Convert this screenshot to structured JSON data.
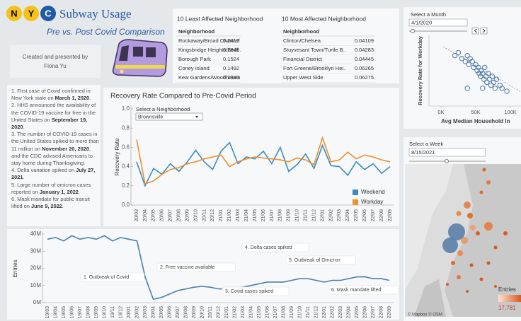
{
  "header": {
    "logo": [
      "N",
      "Y",
      "C"
    ],
    "title": "Subway Usage",
    "subtitle": "Pre vs. Post Covid Comparison",
    "credit": "Created and presented by",
    "author": "Fiona Yu"
  },
  "tables": [
    {
      "title": "10 Least Affected Neighborhood",
      "header": "Neighborhood",
      "rows": [
        [
          "Rockaway/Broad Channel",
          0.2417
        ],
        [
          "Kingsbridge Heights/Bedf..",
          0.1849
        ],
        [
          "Borough Park",
          0.1524
        ],
        [
          "Coney Island",
          0.1492
        ],
        [
          "Kew Gardens/Woodhaven",
          0.1363
        ]
      ]
    },
    {
      "title": "10 Most Affected Neighborhood",
      "header": "Neighborhood",
      "rows": [
        [
          "Clinton/Chelsea",
          0.04109
        ],
        [
          "Stuyvesant Town/Turtle B..",
          0.04283
        ],
        [
          "Financial District",
          0.04445
        ],
        [
          "Fort Greene/Brooklyn Hei..",
          0.06265
        ],
        [
          "Upper West Side",
          0.06275
        ]
      ]
    }
  ],
  "notes": [
    {
      "pre": "1. First case of Covid  confirmed in New York state on ",
      "bold": "March 1, 2020",
      "post": "."
    },
    {
      "pre": "2. HHS announced the availability of the COVID-19 vaccine for free in the United States on ",
      "bold": "September 19, 2020",
      "post": "."
    },
    {
      "pre": "3. The number of COVID-19 cases in the United States spiked to more than 11 million on ",
      "bold": "November 20, 2020",
      "post": ", and the CDC advised Americans to stay home during Thanksgiving."
    },
    {
      "pre": "4. Delta variation spiked on ",
      "bold": "July 27, 2021",
      "post": "."
    },
    {
      "pre": "5. Large number of omicron cases reported on ",
      "bold": "January 1, 2022",
      "post": "."
    },
    {
      "pre": "6. Mask mandate for public transit lifted on ",
      "bold": "June 9, 2022",
      "post": "."
    }
  ],
  "map": {
    "filter_label": "Select a Week",
    "filter_value": "8/15/2021",
    "legend_title": "Entries",
    "legend_max": "17,781",
    "credit": "© Mapbox © OSM"
  },
  "chart_data": [
    {
      "type": "line",
      "title": "Recovery Rate Compared to Pre-Covid Period",
      "filter_label": "Select a Neighborhood",
      "filter_value": "Brownsville",
      "y_label": "Recovery Rate",
      "legend": "bottom-right",
      "categories": [
        "20/03",
        "20/04",
        "20/05",
        "20/06",
        "20/07",
        "20/08",
        "20/09",
        "20/10",
        "20/11",
        "20/12",
        "21/01",
        "21/02",
        "21/03",
        "21/04",
        "21/05",
        "21/06",
        "21/07",
        "21/08",
        "21/09",
        "21/10",
        "21/11",
        "21/12",
        "22/01",
        "22/02",
        "22/03",
        "22/04",
        "22/05",
        "22/06",
        "22/07",
        "22/08",
        "22/09"
      ],
      "series": [
        {
          "name": "Weekend",
          "color": "#3a8cc4",
          "values": [
            0.45,
            0.2,
            0.38,
            0.32,
            0.43,
            0.35,
            0.45,
            0.57,
            0.45,
            0.37,
            0.56,
            0.65,
            0.43,
            0.5,
            0.48,
            0.56,
            0.43,
            0.6,
            0.35,
            0.42,
            0.53,
            0.38,
            0.62,
            0.41,
            0.4,
            0.31,
            0.45,
            0.37,
            0.43,
            0.33,
            0.4
          ]
        },
        {
          "name": "Workday",
          "color": "#f28e2b",
          "values": [
            0.68,
            0.22,
            0.25,
            0.32,
            0.37,
            0.39,
            0.43,
            0.45,
            0.48,
            0.5,
            0.52,
            0.4,
            0.45,
            0.48,
            0.5,
            0.49,
            0.48,
            0.47,
            0.45,
            0.49,
            0.47,
            0.42,
            0.7,
            0.45,
            0.47,
            0.55,
            0.48,
            0.52,
            0.5,
            0.47,
            0.45
          ]
        }
      ],
      "ylim": [
        0,
        1
      ],
      "yticks": [
        {
          "value": 0,
          "label": "0.0"
        },
        0.2,
        0.4,
        0.6,
        0.8,
        {
          "value": 1,
          "label": "1.0"
        }
      ]
    },
    {
      "type": "line",
      "y_label": "Entries",
      "color": "#4a7fb0",
      "categories": [
        "19/03",
        "19/04",
        "19/05",
        "19/06",
        "19/07",
        "19/08",
        "19/09",
        "19/10",
        "19/11",
        "19/12",
        "20/01",
        "20/02",
        "20/03",
        "20/04",
        "20/05",
        "20/06",
        "20/07",
        "20/08",
        "20/09",
        "20/10",
        "20/11",
        "20/12",
        "21/01",
        "21/02",
        "21/03",
        "21/04",
        "21/05",
        "21/06",
        "21/07",
        "21/08",
        "21/09",
        "21/10",
        "21/11",
        "21/12",
        "22/01",
        "22/02",
        "22/03",
        "22/04",
        "22/05",
        "22/06",
        "22/07",
        "22/08",
        "22/09"
      ],
      "values": [
        37000000,
        38000000,
        36000000,
        39000000,
        37000000,
        38000000,
        37000000,
        39000000,
        36000000,
        38000000,
        37000000,
        36000000,
        15000000,
        2000000,
        3000000,
        5000000,
        7000000,
        8000000,
        9000000,
        9500000,
        9000000,
        8000000,
        8000000,
        8500000,
        9000000,
        10000000,
        11000000,
        12000000,
        12000000,
        12000000,
        13000000,
        14000000,
        14000000,
        13000000,
        12000000,
        13000000,
        13000000,
        14000000,
        15000000,
        15000000,
        14000000,
        14000000,
        13000000
      ],
      "ylim": [
        0,
        40000000
      ],
      "yticks": [
        {
          "value": 0,
          "label": "0M"
        },
        {
          "value": 10000000,
          "label": "10M"
        },
        {
          "value": 20000000,
          "label": "20M"
        },
        {
          "value": 30000000,
          "label": "30M"
        },
        {
          "value": 40000000,
          "label": "40M"
        }
      ],
      "annotations": [
        "1. Outbreak of Covid",
        "2. Free vaccine available",
        "3. Covid cases spiked",
        "4. Delta cases spiked",
        "5. Outbreak of Omicron",
        "6. Mask mandate lifted"
      ]
    },
    {
      "type": "scatter",
      "filter_label": "Select a Month",
      "filter_value": "4/1/2020",
      "color": "#4e79a7",
      "x_label": "Avg Median Household In",
      "y_label": "Recovery Rate for Workday",
      "x": [
        20000,
        25000,
        30000,
        35000,
        38000,
        40000,
        42000,
        45000,
        47000,
        50000,
        52000,
        54000,
        55000,
        57000,
        58000,
        60000,
        62000,
        63000,
        65000,
        66000,
        68000,
        70000,
        72000,
        74000,
        76000,
        78000,
        80000,
        85000,
        88000,
        95000,
        60000,
        38000
      ],
      "values": [
        0.27,
        0.28,
        0.26,
        0.25,
        0.27,
        0.24,
        0.26,
        0.25,
        0.23,
        0.24,
        0.22,
        0.23,
        0.21,
        0.2,
        0.22,
        0.21,
        0.19,
        0.23,
        0.2,
        0.18,
        0.21,
        0.19,
        0.17,
        0.2,
        0.18,
        0.16,
        0.19,
        0.17,
        0.16,
        0.15,
        0.16,
        0.16
      ],
      "xlim": [
        -15000,
        115000
      ],
      "ylim": [
        0.1,
        0.35
      ],
      "xticks": [
        {
          "value": 0,
          "label": "0K"
        },
        {
          "value": 50000,
          "label": "50K"
        },
        {
          "value": 100000,
          "label": "100K"
        }
      ]
    }
  ]
}
